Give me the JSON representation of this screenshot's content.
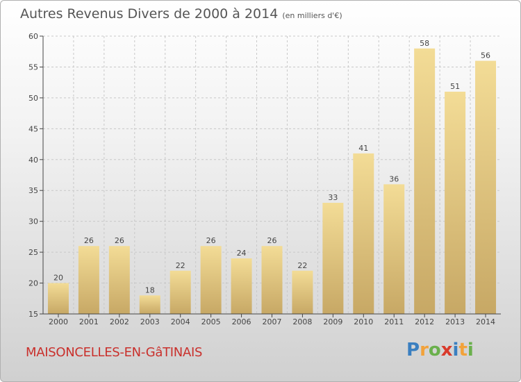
{
  "title": "Autres Revenus Divers de 2000 à 2014",
  "subtitle": "(en milliers d'€)",
  "commune": "MAISONCELLES-EN-GâTINAIS",
  "logo": {
    "letters": [
      "P",
      "r",
      "o",
      "x",
      "i",
      "t",
      "i"
    ],
    "colors": [
      "#3a7fc0",
      "#f2a23a",
      "#6ab04c",
      "#d93a2b",
      "#3a7fc0",
      "#f2a23a",
      "#6ab04c"
    ]
  },
  "colors": {
    "bar_top": "#f3dc96",
    "bar_bottom": "#c7a865",
    "axis": "#444444",
    "grid": "#c8c8c8",
    "title": "#555555",
    "commune": "#c9302c"
  },
  "chart_data": {
    "type": "bar",
    "title": "Autres Revenus Divers de 2000 à 2014",
    "subtitle": "(en milliers d'€)",
    "xlabel": "",
    "ylabel": "",
    "categories": [
      "2000",
      "2001",
      "2002",
      "2003",
      "2004",
      "2005",
      "2006",
      "2007",
      "2008",
      "2009",
      "2010",
      "2011",
      "2012",
      "2013",
      "2014"
    ],
    "values": [
      20,
      26,
      26,
      18,
      22,
      26,
      24,
      26,
      22,
      33,
      41,
      36,
      58,
      51,
      56
    ],
    "ylim": [
      15,
      60
    ],
    "yticks": [
      15,
      20,
      25,
      30,
      35,
      40,
      45,
      50,
      55,
      60
    ],
    "grid": true,
    "data_labels": true
  }
}
